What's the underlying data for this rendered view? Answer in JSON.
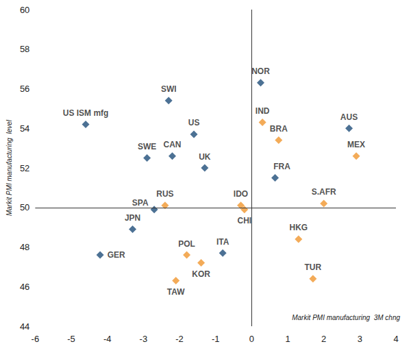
{
  "chart_data": {
    "type": "scatter",
    "x_label": "Markit PMI manufacturing  3M chng",
    "y_label": "Markit PMI manufacturing  level",
    "labels": [
      "US ISM mfg",
      "SWI",
      "US",
      "SWE",
      "CAN",
      "UK",
      "NOR",
      "IND",
      "BRA",
      "AUS",
      "MEX",
      "FRA",
      "S.AFR",
      "IDO",
      "CHI",
      "RUS",
      "SPA",
      "JPN",
      "GER",
      "POL",
      "KOR",
      "TAW",
      "ITA",
      "HKG",
      "TUR"
    ],
    "x": [
      -4.6,
      -2.3,
      -1.6,
      -2.9,
      -2.2,
      -1.3,
      0.25,
      0.3,
      0.75,
      2.7,
      2.9,
      0.65,
      2.0,
      -0.3,
      -0.2,
      -2.4,
      -2.7,
      -3.3,
      -4.2,
      -1.8,
      -1.4,
      -2.1,
      -0.8,
      1.3,
      1.7
    ],
    "values": [
      54.2,
      55.4,
      53.7,
      52.5,
      52.6,
      52.0,
      56.3,
      54.3,
      53.4,
      54.0,
      52.6,
      51.5,
      50.2,
      50.1,
      49.9,
      50.1,
      49.9,
      48.9,
      47.6,
      47.6,
      47.2,
      46.3,
      47.7,
      48.4,
      46.4
    ],
    "colors": [
      "#1F4E79",
      "#1F4E79",
      "#1F4E79",
      "#1F4E79",
      "#1F4E79",
      "#1F4E79",
      "#1F4E79",
      "#F0962E",
      "#F0962E",
      "#1F4E79",
      "#F0962E",
      "#1F4E79",
      "#F0962E",
      "#F0962E",
      "#F0962E",
      "#F0962E",
      "#1F4E79",
      "#1F4E79",
      "#1F4E79",
      "#F0962E",
      "#F0962E",
      "#F0962E",
      "#1F4E79",
      "#F0962E",
      "#F0962E"
    ],
    "marker": "diamond",
    "xlim": [
      -6,
      4
    ],
    "xticks": [
      -6,
      -5,
      -4,
      -3,
      -2,
      -1,
      0,
      1,
      2,
      3,
      4
    ],
    "ylim": [
      44,
      60
    ],
    "yticks": [
      44,
      46,
      48,
      50,
      52,
      54,
      56,
      58,
      60
    ],
    "reference_lines": {
      "x": 0,
      "y": 50
    },
    "grid": false
  }
}
